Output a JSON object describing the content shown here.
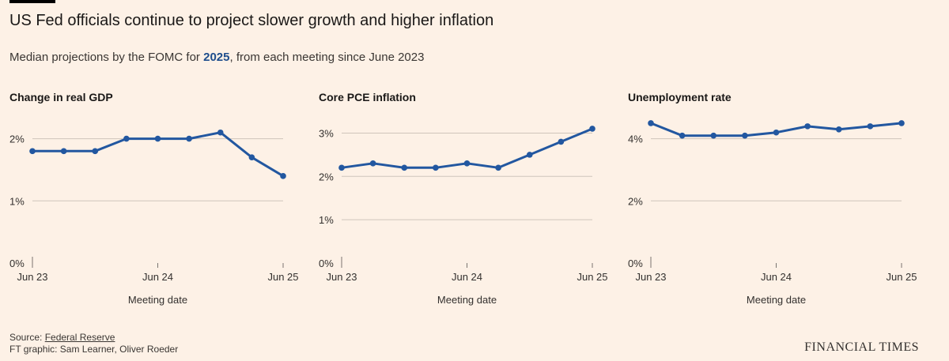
{
  "header": {
    "title": "US Fed officials continue to project slower growth and higher inflation",
    "subtitle_before": "Median projections by the FOMC for ",
    "subtitle_highlight": "2025",
    "subtitle_after": ", from each meeting since June 2023"
  },
  "footer": {
    "source_label": "Source: ",
    "source_link": "Federal Reserve",
    "credit": "FT graphic: Sam Learner, Oliver Roeder",
    "brand": "FINANCIAL TIMES"
  },
  "colors": {
    "line": "#2257a0",
    "grid": "#cfc5bb",
    "axis": "#7a7470"
  },
  "chart_data": [
    {
      "type": "line",
      "title": "Change in real GDP",
      "xlabel": "Meeting date",
      "x_tick_labels": [
        "Jun 23",
        "Jun 24",
        "Jun 25"
      ],
      "x_tick_index": [
        0,
        4,
        8
      ],
      "x": [
        "Jun 23",
        "Sep 23",
        "Dec 23",
        "Mar 24",
        "Jun 24",
        "Sep 24",
        "Dec 24",
        "Mar 25",
        "Jun 25"
      ],
      "values": [
        1.8,
        1.8,
        1.8,
        2.0,
        2.0,
        2.0,
        2.1,
        1.7,
        1.4
      ],
      "ylim": [
        0,
        2.3
      ],
      "y_ticks": [
        0,
        1,
        2
      ],
      "y_tick_labels": [
        "0%",
        "1%",
        "2%"
      ]
    },
    {
      "type": "line",
      "title": "Core PCE inflation",
      "xlabel": "Meeting date",
      "x_tick_labels": [
        "Jun 23",
        "Jun 24",
        "Jun 25"
      ],
      "x_tick_index": [
        0,
        4,
        8
      ],
      "x": [
        "Jun 23",
        "Sep 23",
        "Dec 23",
        "Mar 24",
        "Jun 24",
        "Sep 24",
        "Dec 24",
        "Mar 25",
        "Jun 25"
      ],
      "values": [
        2.2,
        2.3,
        2.2,
        2.2,
        2.3,
        2.2,
        2.5,
        2.8,
        3.1
      ],
      "ylim": [
        0,
        3.3
      ],
      "y_ticks": [
        0,
        1,
        2,
        3
      ],
      "y_tick_labels": [
        "0%",
        "1%",
        "2%",
        "3%"
      ]
    },
    {
      "type": "line",
      "title": "Unemployment rate",
      "xlabel": "Meeting date",
      "x_tick_labels": [
        "Jun 23",
        "Jun 24",
        "Jun 25"
      ],
      "x_tick_index": [
        0,
        4,
        8
      ],
      "x": [
        "Jun 23",
        "Sep 23",
        "Dec 23",
        "Mar 24",
        "Jun 24",
        "Sep 24",
        "Dec 24",
        "Mar 25",
        "Jun 25"
      ],
      "values": [
        4.5,
        4.1,
        4.1,
        4.1,
        4.2,
        4.4,
        4.3,
        4.4,
        4.5
      ],
      "ylim": [
        0,
        4.6
      ],
      "y_ticks": [
        0,
        2,
        4
      ],
      "y_tick_labels": [
        "0%",
        "2%",
        "4%"
      ]
    }
  ]
}
